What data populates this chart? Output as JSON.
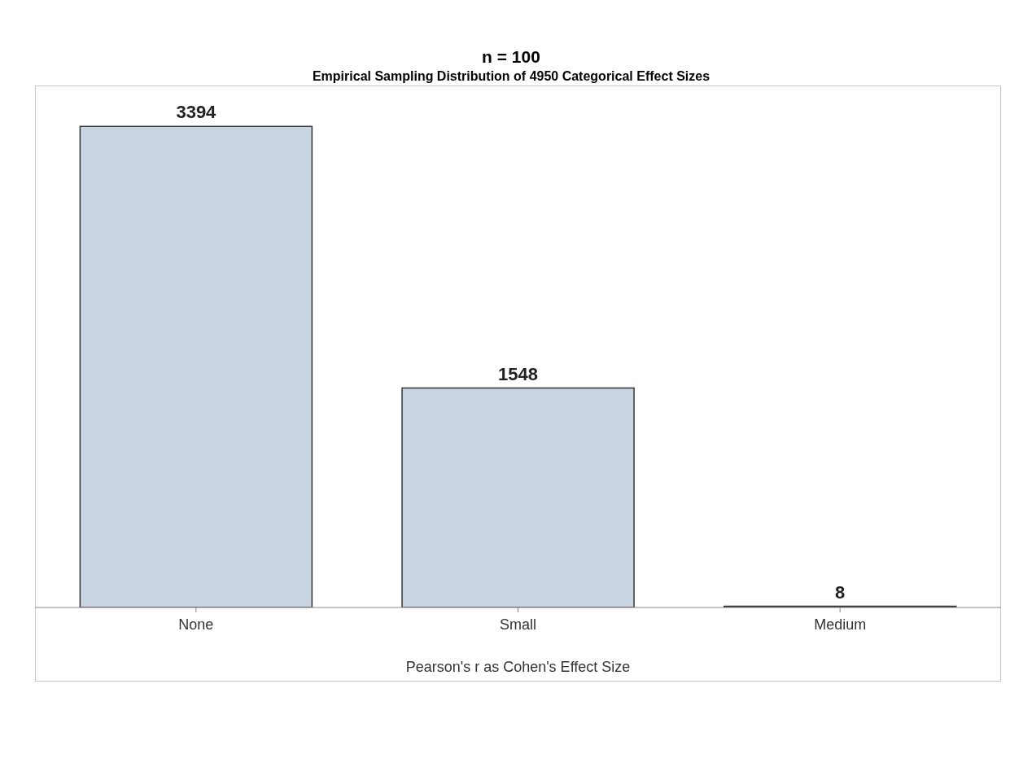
{
  "chart_data": {
    "type": "bar",
    "title": "n = 100",
    "subtitle": "Empirical Sampling Distribution of 4950 Categorical Effect Sizes",
    "xlabel": "Pearson's r as Cohen's Effect Size",
    "categories": [
      "None",
      "Small",
      "Medium"
    ],
    "values": [
      3394,
      1548,
      8
    ],
    "color": "#c9d5e3",
    "data_labels": true
  }
}
